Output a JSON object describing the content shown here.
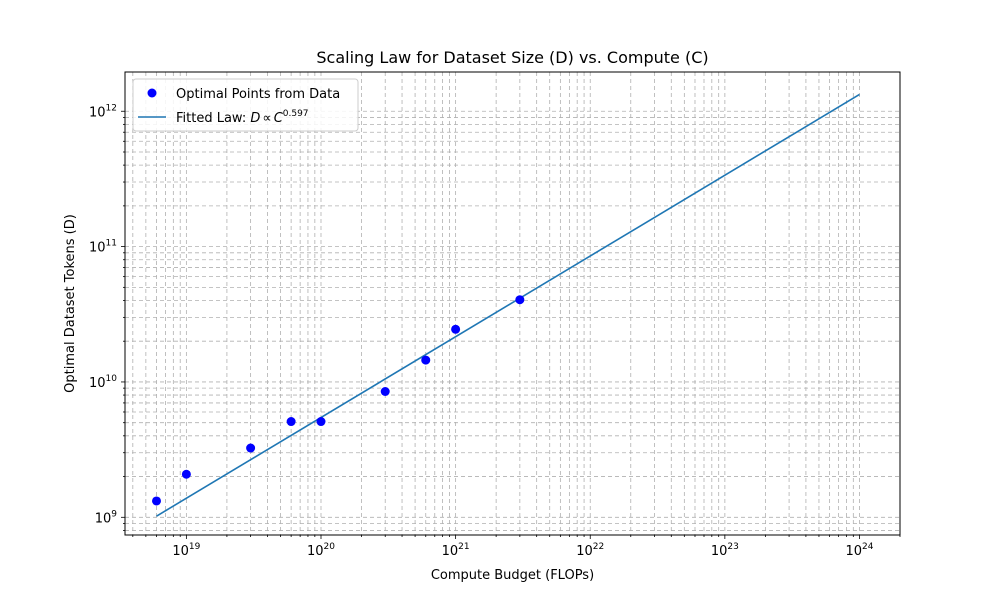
{
  "chart_data": {
    "type": "scatter",
    "title": "Scaling Law for Dataset Size (D) vs. Compute (C)",
    "xlabel": "Compute Budget (FLOPs)",
    "ylabel": "Optimal Dataset Tokens (D)",
    "xscale": "log",
    "yscale": "log",
    "xlim": [
      3.5e+18,
      2e+24
    ],
    "ylim": [
      740000000.0,
      1950000000000.0
    ],
    "grid": true,
    "legend_position": "top-left",
    "x_ticks": [
      {
        "base": "10",
        "exp": "19",
        "value": 1e+19
      },
      {
        "base": "10",
        "exp": "20",
        "value": 1e+20
      },
      {
        "base": "10",
        "exp": "21",
        "value": 1e+21
      },
      {
        "base": "10",
        "exp": "22",
        "value": 1e+22
      },
      {
        "base": "10",
        "exp": "23",
        "value": 1e+23
      },
      {
        "base": "10",
        "exp": "24",
        "value": 1e+24
      }
    ],
    "y_ticks": [
      {
        "base": "10",
        "exp": "9",
        "value": 1000000000.0
      },
      {
        "base": "10",
        "exp": "10",
        "value": 10000000000.0
      },
      {
        "base": "10",
        "exp": "11",
        "value": 100000000000.0
      },
      {
        "base": "10",
        "exp": "12",
        "value": 1000000000000.0
      }
    ],
    "series": [
      {
        "name": "Optimal Points from Data",
        "kind": "scatter",
        "color": "#0000ff",
        "x": [
          6e+18,
          1e+19,
          3e+19,
          6e+19,
          1e+20,
          3e+20,
          6e+20,
          1e+21,
          3e+21
        ],
        "y": [
          1320000000.0,
          2080000000.0,
          3250000000.0,
          5100000000.0,
          5100000000.0,
          8500000000.0,
          14500000000.0,
          24500000000.0,
          40500000000.0
        ]
      },
      {
        "name_prefix": "Fitted Law: ",
        "name_math": "D",
        "name_prop": "∝",
        "name_var": "C",
        "name_exp": "0.597",
        "kind": "line",
        "color": "#1f77b4",
        "x": [
          6e+18,
          1e+24
        ],
        "y": [
          1020000000.0,
          1330000000000.0
        ]
      }
    ]
  }
}
